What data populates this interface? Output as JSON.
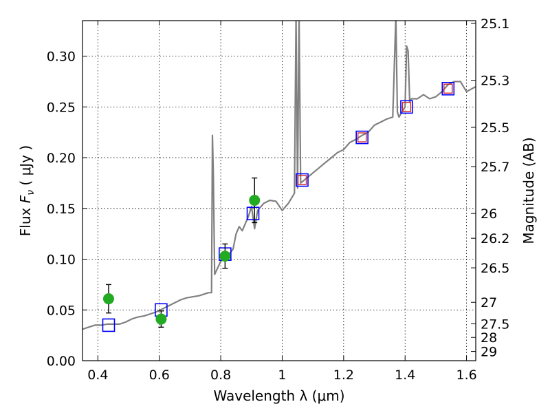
{
  "chart_data": {
    "type": "scatter",
    "xlabel": "Wavelength  λ (μm)",
    "ylabel_prefix": "Flux  ",
    "ylabel_symbol": "F",
    "ylabel_sub": "ν",
    "ylabel_suffix": "  ( μJy )",
    "y2label": "Magnitude (AB)",
    "xlim": [
      0.35,
      1.63
    ],
    "ylim": [
      0.0,
      0.335
    ],
    "x_ticks": [
      0.4,
      0.6,
      0.8,
      1.0,
      1.2,
      1.4,
      1.6
    ],
    "x_tick_labels": [
      "0.4",
      "0.6",
      "0.8",
      "1",
      "1.2",
      "1.4",
      "1.6"
    ],
    "y_ticks": [
      0.0,
      0.05,
      0.1,
      0.15,
      0.2,
      0.25,
      0.3
    ],
    "y_tick_labels": [
      "0.00",
      "0.05",
      "0.10",
      "0.15",
      "0.20",
      "0.25",
      "0.30"
    ],
    "y2_ticks": [
      {
        "label": "25.1",
        "flux": 0.3323
      },
      {
        "label": "25.3",
        "flux": 0.2763
      },
      {
        "label": "25.5",
        "flux": 0.2299
      },
      {
        "label": "25.7",
        "flux": 0.1912
      },
      {
        "label": "26",
        "flux": 0.145
      },
      {
        "label": "26.2",
        "flux": 0.1206
      },
      {
        "label": "26.5",
        "flux": 0.0915
      },
      {
        "label": "27",
        "flux": 0.0575
      },
      {
        "label": "27.5",
        "flux": 0.0363
      },
      {
        "label": "28",
        "flux": 0.0229
      },
      {
        "label": "29",
        "flux": 0.0091
      }
    ],
    "grid": true,
    "colors": {
      "model": "#808080",
      "observed": "#22aa22",
      "model_box": "#0000ff",
      "inner_box": "#cc2222",
      "errorbar": "#000000"
    },
    "spectrum": {
      "x": [
        0.35,
        0.37,
        0.39,
        0.41,
        0.43,
        0.45,
        0.47,
        0.49,
        0.51,
        0.53,
        0.55,
        0.57,
        0.59,
        0.61,
        0.63,
        0.65,
        0.67,
        0.69,
        0.71,
        0.73,
        0.75,
        0.76,
        0.77,
        0.773,
        0.776,
        0.78,
        0.8,
        0.82,
        0.84,
        0.85,
        0.86,
        0.87,
        0.88,
        0.89,
        0.9,
        0.91,
        0.92,
        0.94,
        0.96,
        0.98,
        1.0,
        1.02,
        1.03,
        1.04,
        1.045,
        1.05,
        1.055,
        1.06,
        1.08,
        1.1,
        1.12,
        1.14,
        1.16,
        1.18,
        1.2,
        1.22,
        1.24,
        1.26,
        1.28,
        1.3,
        1.32,
        1.34,
        1.36,
        1.37,
        1.375,
        1.38,
        1.39,
        1.4,
        1.405,
        1.41,
        1.415,
        1.42,
        1.44,
        1.46,
        1.48,
        1.5,
        1.52,
        1.54,
        1.56,
        1.58,
        1.6,
        1.63
      ],
      "y": [
        0.031,
        0.033,
        0.035,
        0.035,
        0.036,
        0.036,
        0.036,
        0.038,
        0.041,
        0.043,
        0.044,
        0.046,
        0.048,
        0.051,
        0.054,
        0.057,
        0.06,
        0.062,
        0.063,
        0.064,
        0.066,
        0.067,
        0.067,
        0.222,
        0.18,
        0.085,
        0.098,
        0.102,
        0.11,
        0.125,
        0.132,
        0.128,
        0.135,
        0.142,
        0.152,
        0.13,
        0.148,
        0.155,
        0.158,
        0.157,
        0.148,
        0.155,
        0.16,
        0.165,
        0.34,
        0.17,
        0.34,
        0.175,
        0.18,
        0.185,
        0.19,
        0.195,
        0.2,
        0.205,
        0.208,
        0.215,
        0.218,
        0.222,
        0.225,
        0.232,
        0.235,
        0.238,
        0.24,
        0.34,
        0.245,
        0.24,
        0.245,
        0.25,
        0.31,
        0.305,
        0.255,
        0.258,
        0.258,
        0.262,
        0.258,
        0.26,
        0.265,
        0.272,
        0.275,
        0.275,
        0.265,
        0.27
      ]
    },
    "observed": [
      {
        "x": 0.435,
        "y": 0.061,
        "yerr": 0.014
      },
      {
        "x": 0.606,
        "y": 0.041,
        "yerr": 0.008
      },
      {
        "x": 0.814,
        "y": 0.103,
        "yerr": 0.012
      },
      {
        "x": 0.91,
        "y": 0.158,
        "yerr": 0.022
      }
    ],
    "model_boxes": [
      {
        "x": 0.435,
        "y": 0.035
      },
      {
        "x": 0.606,
        "y": 0.05
      },
      {
        "x": 0.814,
        "y": 0.105
      },
      {
        "x": 0.905,
        "y": 0.145
      },
      {
        "x": 1.065,
        "y": 0.178,
        "inner": true
      },
      {
        "x": 1.26,
        "y": 0.22,
        "inner": true
      },
      {
        "x": 1.405,
        "y": 0.25,
        "inner": true
      },
      {
        "x": 1.54,
        "y": 0.268,
        "inner": true
      }
    ]
  }
}
